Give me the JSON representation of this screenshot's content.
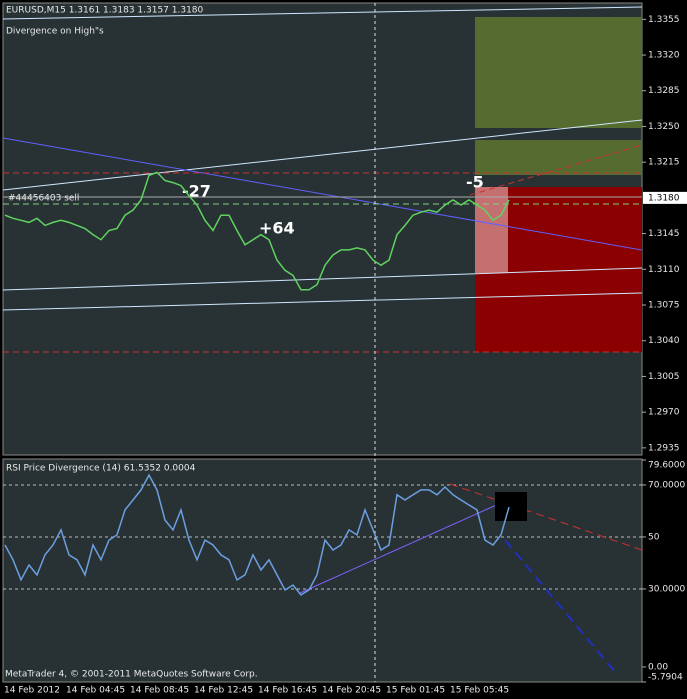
{
  "header": {
    "symbol_line": "EURUSD,M15  1.3161 1.3183 1.3157 1.3180",
    "indicator": "Divergence on High\"s"
  },
  "footer": "MetaTrader 4, © 2001-2011 MetaQuotes Software Corp.",
  "time_axis": {
    "labels": [
      "14 Feb 2012",
      "14 Feb 04:45",
      "14 Feb 08:45",
      "14 Feb 12:45",
      "14 Feb 16:45",
      "14 Feb 20:45",
      "15 Feb 01:45",
      "15 Feb 05:45"
    ]
  },
  "chart_data": [
    {
      "type": "line",
      "color": "#5fd35f",
      "order_label": "#44456403 sell",
      "annotations": [
        "-27",
        "+64",
        "-5"
      ],
      "bid_label": {
        "value": 1.318,
        "label": "1.3180"
      },
      "values": [
        1.3163,
        1.316,
        1.3158,
        1.3156,
        1.316,
        1.3153,
        1.3156,
        1.3158,
        1.3156,
        1.3153,
        1.315,
        1.3144,
        1.3139,
        1.3148,
        1.315,
        1.3163,
        1.3168,
        1.3178,
        1.3202,
        1.3205,
        1.3197,
        1.3195,
        1.3192,
        1.3182,
        1.3173,
        1.3158,
        1.3148,
        1.3163,
        1.3163,
        1.3148,
        1.3134,
        1.3139,
        1.3144,
        1.3139,
        1.3119,
        1.3109,
        1.3104,
        1.309,
        1.309,
        1.3095,
        1.3114,
        1.3124,
        1.3129,
        1.3129,
        1.3131,
        1.3129,
        1.3119,
        1.3114,
        1.3119,
        1.3144,
        1.3153,
        1.3163,
        1.3166,
        1.3168,
        1.3166,
        1.3173,
        1.3178,
        1.3173,
        1.3178,
        1.3173,
        1.3168,
        1.3158,
        1.3163,
        1.3178
      ],
      "ylim": [
        1.2928,
        1.3371
      ],
      "yticks": [
        1.3355,
        {
          "value": 1.332,
          "label": "1.3320"
        },
        1.3285,
        {
          "value": 1.325,
          "label": "1.3250"
        },
        1.3215,
        1.3145,
        {
          "value": 1.311,
          "label": "1.3110"
        },
        1.3075,
        {
          "value": 1.304,
          "label": "1.3040"
        },
        1.3005,
        {
          "value": 1.297,
          "label": "1.2970"
        },
        1.2935
      ]
    },
    {
      "type": "line",
      "title": "RSI Price Divergence (14) 61.5352 0.0004",
      "color": "#6b9fe0",
      "values": [
        46.9,
        41.2,
        33.5,
        39.2,
        35.4,
        43.1,
        46.9,
        52.7,
        43.1,
        41.2,
        35.4,
        46.9,
        41.2,
        48.8,
        50.8,
        60.4,
        64.2,
        68.1,
        73.8,
        68.1,
        56.5,
        52.7,
        60.4,
        48.8,
        41.2,
        48.8,
        46.9,
        43.1,
        41.2,
        33.5,
        35.4,
        43.1,
        37.3,
        41.2,
        35.4,
        29.6,
        31.5,
        27.7,
        29.6,
        35.4,
        48.8,
        45.0,
        46.9,
        52.7,
        50.8,
        60.4,
        52.7,
        45.0,
        46.9,
        66.2,
        64.2,
        66.2,
        68.1,
        68.1,
        66.2,
        69.2,
        66.2,
        64.2,
        62.3,
        60.4,
        48.8,
        46.9,
        50.8,
        61.5
      ],
      "ylim": [
        -5.7904,
        79.6
      ],
      "yticks": [
        {
          "value": 79.6,
          "label": "79.6000"
        },
        {
          "value": 70,
          "label": "70.0000"
        },
        50,
        {
          "value": 30,
          "label": "30.0000"
        },
        {
          "value": 0,
          "label": "0.00"
        },
        {
          "value": -5.7904,
          "label": "-5.7904"
        }
      ]
    }
  ]
}
